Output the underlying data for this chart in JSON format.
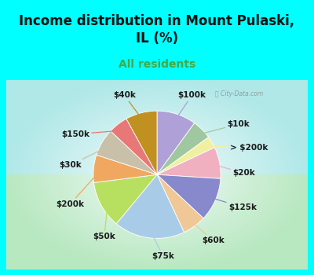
{
  "title": "Income distribution in Mount Pulaski,\nIL (%)",
  "subtitle": "All residents",
  "watermark": "ⓘ City-Data.com",
  "background_cyan": "#00FFFF",
  "slices": [
    {
      "label": "$100k",
      "value": 10,
      "color": "#b0a0d8"
    },
    {
      "label": "$10k",
      "value": 5,
      "color": "#a0c8a0"
    },
    {
      "label": "> $200k",
      "value": 3,
      "color": "#f0f0a0"
    },
    {
      "label": "$20k",
      "value": 8,
      "color": "#f0b0c0"
    },
    {
      "label": "$125k",
      "value": 11,
      "color": "#8888cc"
    },
    {
      "label": "$60k",
      "value": 6,
      "color": "#f0c898"
    },
    {
      "label": "$75k",
      "value": 18,
      "color": "#a8cce8"
    },
    {
      "label": "$50k",
      "value": 12,
      "color": "#b8e060"
    },
    {
      "label": "$200k",
      "value": 7,
      "color": "#f0a860"
    },
    {
      "label": "$30k",
      "value": 7,
      "color": "#c8c0a8"
    },
    {
      "label": "$150k",
      "value": 5,
      "color": "#e87878"
    },
    {
      "label": "$40k",
      "value": 8,
      "color": "#c09020"
    }
  ],
  "label_fontsize": 7.5,
  "title_fontsize": 12,
  "subtitle_fontsize": 10,
  "title_color": "#111111",
  "subtitle_color": "#44aa44"
}
